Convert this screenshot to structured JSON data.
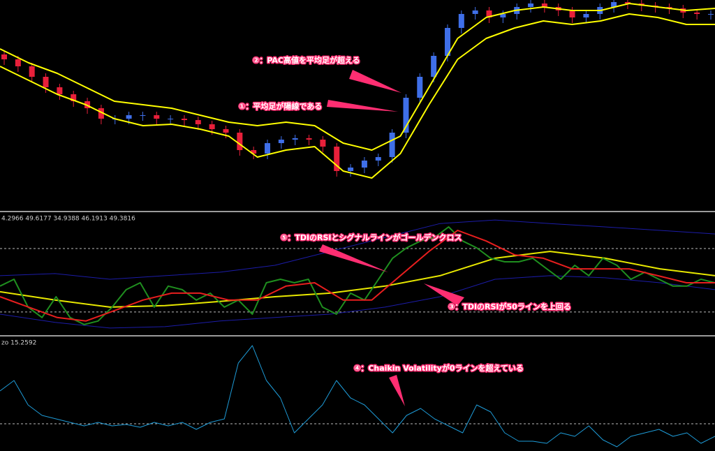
{
  "chart_data": [
    {
      "type": "candlestick",
      "ylim": [
        0,
        300
      ],
      "up_color": "#3f6fe8",
      "down_color": "#e8203a",
      "open": [
        222,
        215,
        205,
        190,
        175,
        165,
        155,
        145,
        130,
        130,
        135,
        135,
        130,
        130,
        128,
        122,
        115,
        110,
        85,
        80,
        95,
        100,
        102,
        100,
        90,
        55,
        60,
        70,
        75,
        110,
        160,
        190,
        220,
        260,
        280,
        285,
        275,
        280,
        290,
        295,
        290,
        285,
        275,
        280,
        290,
        297,
        295,
        292,
        290,
        288,
        282,
        280
      ],
      "high": [
        227,
        220,
        210,
        195,
        180,
        170,
        160,
        150,
        135,
        140,
        140,
        140,
        135,
        135,
        133,
        127,
        120,
        115,
        90,
        100,
        105,
        107,
        107,
        105,
        95,
        65,
        75,
        80,
        115,
        165,
        195,
        225,
        265,
        285,
        290,
        290,
        285,
        295,
        300,
        300,
        295,
        290,
        285,
        295,
        300,
        300,
        300,
        297,
        295,
        293,
        287,
        285
      ],
      "low": [
        207,
        197,
        182,
        167,
        157,
        147,
        137,
        122,
        122,
        122,
        127,
        122,
        122,
        120,
        114,
        107,
        102,
        77,
        72,
        72,
        87,
        92,
        92,
        82,
        47,
        47,
        52,
        62,
        67,
        102,
        152,
        182,
        212,
        252,
        272,
        267,
        267,
        272,
        282,
        282,
        277,
        267,
        267,
        272,
        282,
        287,
        284,
        282,
        280,
        274,
        272,
        272
      ],
      "close": [
        215,
        205,
        190,
        175,
        165,
        155,
        145,
        130,
        130,
        135,
        135,
        130,
        130,
        128,
        122,
        115,
        110,
        85,
        80,
        95,
        100,
        102,
        100,
        90,
        55,
        60,
        70,
        75,
        110,
        160,
        190,
        220,
        260,
        280,
        285,
        275,
        280,
        290,
        295,
        290,
        285,
        275,
        280,
        290,
        297,
        295,
        292,
        290,
        288,
        282,
        280,
        280
      ],
      "series": [
        {
          "color": "#ffff00",
          "values": [
            230,
            210,
            195,
            175,
            155,
            150,
            145,
            135,
            125,
            120,
            125,
            120,
            95,
            85,
            105,
            175,
            245,
            275,
            285,
            290,
            285,
            285,
            295,
            290,
            285,
            288
          ]
        },
        {
          "color": "#ffff00",
          "values": [
            205,
            185,
            165,
            150,
            130,
            120,
            122,
            115,
            105,
            75,
            85,
            90,
            55,
            45,
            80,
            150,
            215,
            245,
            260,
            270,
            265,
            270,
            280,
            275,
            265,
            265
          ]
        }
      ],
      "annotations": [
        "②：PAC高値を平均足が超える",
        "①：平均足が陽線である"
      ]
    },
    {
      "type": "line",
      "header": "4.2966 49.6177 34.9388 46.1913 49.3816",
      "ylim": [
        19.3,
        88.2
      ],
      "levels": [
        32,
        68
      ],
      "series": [
        {
          "color": "#1c1ca8",
          "values": [
            52.6,
            53.8,
            50.6,
            52.6,
            54.6,
            58.5,
            66.4,
            74.3,
            82.2,
            84.2,
            82.2,
            80.3,
            78.3,
            76.3
          ]
        },
        {
          "color": "#1c1ca8",
          "values": [
            30.8,
            26.1,
            22.9,
            23.7,
            26.9,
            28.9,
            30.8,
            34.8,
            40.7,
            50.6,
            52.6,
            51.4,
            48.6,
            44.7
          ]
        },
        {
          "color": "#e8e800",
          "values": [
            43.5,
            38.8,
            34.8,
            35.6,
            38.0,
            40.7,
            42.7,
            46.7,
            52.6,
            62.5,
            66.4,
            62.5,
            56.5,
            52.6
          ]
        },
        {
          "color": "#1f8f1f",
          "values": [
            46.7,
            50.6,
            34.8,
            28.9,
            40.7,
            28.9,
            24.9,
            26.9,
            34.8,
            44.7,
            48.6,
            34.8,
            46.7,
            44.7,
            38.8,
            42.7,
            34.8,
            38.8,
            30.8,
            48.6,
            50.6,
            48.6,
            50.6,
            34.8,
            30.8,
            42.7,
            38.8,
            50.6,
            62.5,
            68.4,
            72.3,
            74.3,
            80.3,
            72.3,
            68.4,
            62.5,
            60.5,
            60.5,
            62.5,
            56.5,
            50.6,
            58.5,
            52.6,
            62.5,
            58.5,
            50.6,
            54.6,
            50.6,
            46.7,
            46.7,
            50.6,
            48.6
          ]
        },
        {
          "color": "#e81e1e",
          "values": [
            40.7,
            34.8,
            28.9,
            26.9,
            32.8,
            38.8,
            42.7,
            42.7,
            38.8,
            38.8,
            46.7,
            48.6,
            38.8,
            38.8,
            52.6,
            66.4,
            78.3,
            72.3,
            64.4,
            62.5,
            56.5,
            56.5,
            56.5,
            52.6,
            48.6,
            48.6
          ]
        }
      ],
      "annotations": [
        "⑤：TDIのRSIとシグナルラインがゴールデンクロス",
        "③：TDIのRSIが50ラインを上回る"
      ]
    },
    {
      "type": "line",
      "header": "zo 15.2592",
      "ylim": [
        -19.5,
        62
      ],
      "levels": [
        0
      ],
      "series": [
        {
          "color": "#1e9bd7",
          "values": [
            23.5,
            31,
            13.5,
            6,
            3.5,
            1,
            -1.5,
            1,
            -1.5,
            -0.5,
            -2.5,
            1,
            -1.5,
            1,
            -4,
            1,
            3.5,
            43.5,
            56,
            31,
            18.5,
            -6.5,
            3.5,
            13.5,
            31,
            18.5,
            13.5,
            3.5,
            -6.5,
            6,
            11,
            3.5,
            -1.5,
            -6.5,
            13.5,
            8.5,
            -6.5,
            -12.5,
            -12.5,
            -14,
            -6.5,
            -9,
            -1.5,
            -11.5,
            -16.5,
            -9,
            -6.5,
            -4,
            -9,
            -6.5,
            -14,
            -9
          ]
        }
      ],
      "annotations": [
        "④：Chaikin Volatilityが0ラインを超えている"
      ]
    }
  ]
}
